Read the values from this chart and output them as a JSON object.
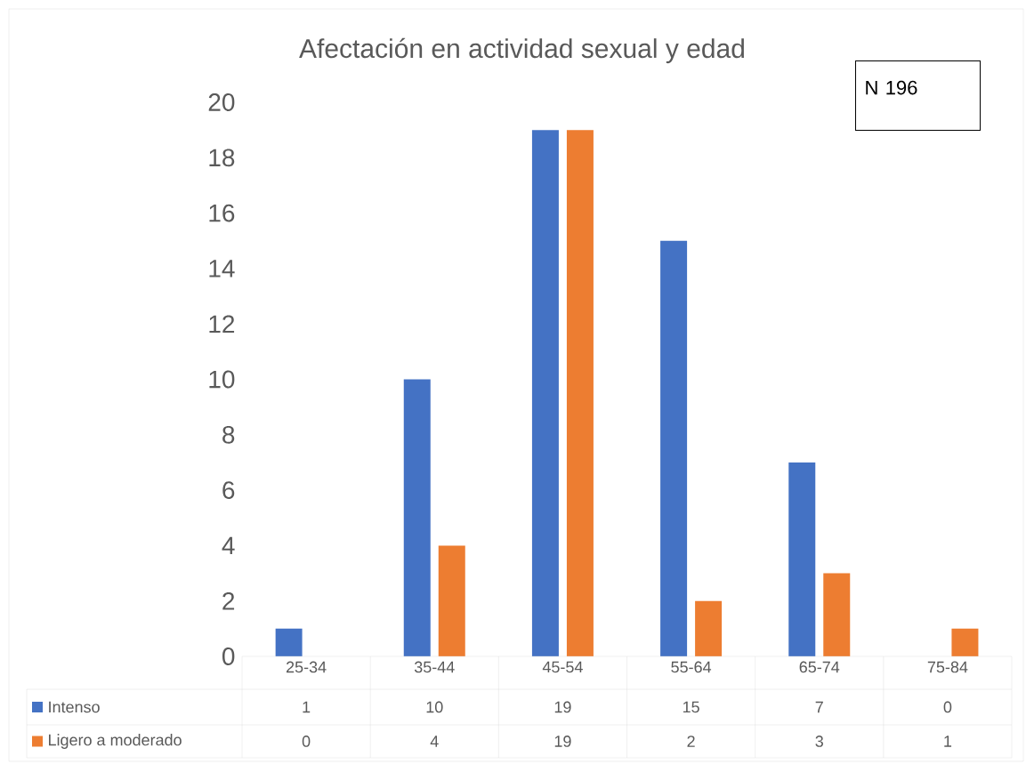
{
  "chart_data": {
    "type": "bar",
    "title": "Afectación en actividad sexual y edad",
    "categories": [
      "25-34",
      "35-44",
      "45-54",
      "55-64",
      "65-74",
      "75-84"
    ],
    "series": [
      {
        "name": "Intenso",
        "color": "#4472c4",
        "values": [
          1,
          10,
          19,
          15,
          7,
          0
        ]
      },
      {
        "name": "Ligero a moderado",
        "color": "#ed7d31",
        "values": [
          0,
          4,
          19,
          2,
          3,
          1
        ]
      }
    ],
    "ylim": [
      0,
      20
    ],
    "yticks": [
      0,
      2,
      4,
      6,
      8,
      10,
      12,
      14,
      16,
      18,
      20
    ],
    "data_labels": true,
    "legend": "bottom",
    "grid": false,
    "annotations": [
      "N 196"
    ]
  }
}
